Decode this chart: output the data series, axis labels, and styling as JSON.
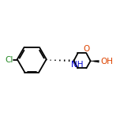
{
  "bg_color": "#ffffff",
  "bond_color": "#000000",
  "cl_color": "#228822",
  "o_color": "#dd4400",
  "n_color": "#0000cc",
  "oh_color": "#dd4400",
  "line_width": 1.3,
  "figsize": [
    1.52,
    1.52
  ],
  "dpi": 100,
  "font_size": 7.5,
  "cl_label": "Cl",
  "nh_label": "NH",
  "o_label": "O",
  "oh_label": "OH"
}
